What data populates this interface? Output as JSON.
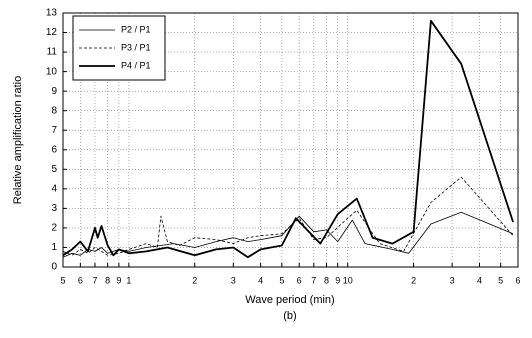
{
  "chart_data": {
    "type": "line",
    "xlabel": "Wave period (min)",
    "ylabel": "Relative amplification ratio",
    "caption": "(b)",
    "xscale": "log",
    "xlim": [
      0.5,
      60
    ],
    "ylim": [
      0,
      13
    ],
    "yticks": [
      0,
      1,
      2,
      3,
      4,
      5,
      6,
      7,
      8,
      9,
      10,
      11,
      12,
      13
    ],
    "xticks": [
      {
        "value": 0.5,
        "label": "5"
      },
      {
        "value": 0.6,
        "label": "6"
      },
      {
        "value": 0.7,
        "label": "7"
      },
      {
        "value": 0.8,
        "label": "8"
      },
      {
        "value": 0.9,
        "label": "9"
      },
      1,
      2,
      3,
      4,
      5,
      6,
      7,
      8,
      9,
      10,
      {
        "value": 20,
        "label": "2"
      },
      {
        "value": 30,
        "label": "3"
      },
      {
        "value": 40,
        "label": "4"
      },
      {
        "value": 50,
        "label": "5"
      },
      {
        "value": 60,
        "label": "6"
      }
    ],
    "grid": true,
    "legend": "upper left",
    "series": [
      {
        "name": "P2 / P1",
        "color": "#000000",
        "line_width": 0.8,
        "dash": false,
        "x": [
          0.5,
          0.55,
          0.6,
          0.65,
          0.7,
          0.75,
          0.8,
          0.9,
          1,
          1.2,
          1.4,
          1.6,
          2,
          2.5,
          3,
          3.5,
          4,
          5,
          6,
          7,
          8,
          9,
          10.5,
          12,
          16,
          19,
          24,
          33,
          57
        ],
        "values": [
          0.5,
          0.7,
          0.6,
          0.9,
          0.8,
          1.0,
          0.7,
          0.9,
          0.8,
          1.0,
          1.1,
          1.2,
          1.0,
          1.3,
          1.5,
          1.3,
          1.4,
          1.6,
          2.6,
          1.8,
          1.9,
          1.3,
          2.4,
          1.2,
          0.9,
          0.7,
          2.2,
          2.8,
          1.7
        ]
      },
      {
        "name": "P3 / P1",
        "color": "#000000",
        "line_width": 0.8,
        "dash": true,
        "x": [
          0.5,
          0.55,
          0.6,
          0.65,
          0.7,
          0.75,
          0.8,
          0.9,
          1,
          1.2,
          1.35,
          1.4,
          1.5,
          1.7,
          2,
          2.5,
          3,
          3.5,
          4,
          5,
          6,
          7,
          8,
          10,
          11,
          14,
          18,
          24,
          33,
          57
        ],
        "values": [
          0.8,
          0.6,
          0.9,
          0.7,
          1.0,
          0.8,
          0.6,
          0.7,
          0.9,
          1.2,
          1.0,
          2.6,
          1.3,
          1.1,
          1.5,
          1.4,
          1.2,
          1.5,
          1.6,
          1.7,
          2.5,
          1.4,
          1.5,
          2.5,
          2.9,
          1.2,
          0.8,
          3.3,
          4.6,
          1.6
        ]
      },
      {
        "name": "P4 / P1",
        "color": "#000000",
        "line_width": 1.8,
        "dash": false,
        "x": [
          0.5,
          0.55,
          0.6,
          0.65,
          0.7,
          0.72,
          0.75,
          0.8,
          0.85,
          0.9,
          1,
          1.2,
          1.5,
          2,
          2.5,
          3,
          3.5,
          4,
          5,
          5.8,
          7.5,
          9,
          11,
          13,
          16,
          20,
          24,
          33,
          57
        ],
        "values": [
          0.6,
          0.9,
          1.3,
          0.8,
          2.0,
          1.5,
          2.1,
          1.1,
          0.6,
          0.9,
          0.7,
          0.8,
          1.0,
          0.6,
          0.9,
          1.0,
          0.5,
          0.9,
          1.1,
          2.5,
          1.2,
          2.7,
          3.5,
          1.5,
          1.2,
          1.8,
          12.6,
          10.4,
          2.3
        ]
      }
    ]
  }
}
